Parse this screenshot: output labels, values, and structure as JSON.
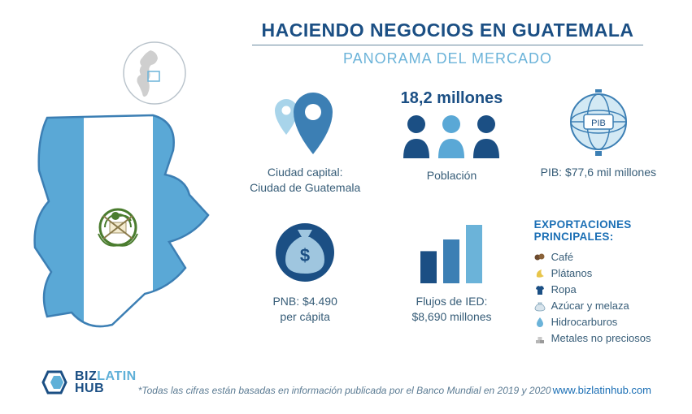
{
  "colors": {
    "primary_dark": "#1b4f84",
    "primary_mid": "#3c7fb4",
    "primary_light": "#6bb3d9",
    "accent_light": "#a8d4ea",
    "text": "#375d78",
    "rule": "#6a8aa0",
    "white": "#ffffff",
    "grey": "#cfcfcf",
    "guatemala_green": "#4a7c2e",
    "guatemala_yellow": "#d9b23c"
  },
  "header": {
    "title": "HACIENDO NEGOCIOS EN GUATEMALA",
    "subtitle": "PANORAMA DEL MERCADO"
  },
  "glyphs": {
    "pib_label": "PIB"
  },
  "stats": {
    "capital": {
      "label_line1": "Ciudad capital:",
      "label_line2": "Ciudad de Guatemala"
    },
    "population": {
      "headline": "18,2 millones",
      "label": "Población"
    },
    "gdp": {
      "label": "PIB: $77,6 mil millones"
    },
    "gnp": {
      "label_line1": "PNB: $4.490",
      "label_line2": "per cápita"
    },
    "fdi": {
      "label_line1": "Flujos de IED:",
      "label_line2": "$8,690 millones",
      "bars": [
        0.55,
        0.75,
        1.0
      ],
      "bar_colors": [
        "#1b4f84",
        "#3c7fb4",
        "#6bb3d9"
      ]
    },
    "exports": {
      "title": "EXPORTACIONES PRINCIPALES:",
      "items": [
        {
          "icon": "coffee",
          "label": "Café"
        },
        {
          "icon": "banana",
          "label": "Plátanos"
        },
        {
          "icon": "shirt",
          "label": "Ropa"
        },
        {
          "icon": "sugar",
          "label": "Azúcar y melaza"
        },
        {
          "icon": "oil",
          "label": "Hidrocarburos"
        },
        {
          "icon": "metal",
          "label": "Metales no preciosos"
        }
      ]
    }
  },
  "footer": {
    "logo": {
      "line1a": "BIZ",
      "line1b": "LATIN",
      "line2": "HUB"
    },
    "footnote": "*Todas las cifras están basadas en información publicada por el Banco Mundial en 2019 y 2020",
    "url": "www.bizlatinhub.com"
  }
}
